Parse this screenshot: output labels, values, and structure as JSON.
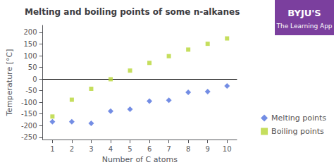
{
  "chart_data": {
    "type": "scatter",
    "title": "Melting and boiling points of some n-alkanes",
    "xlabel": "Number of C atoms",
    "ylabel": "Temperature [°C]",
    "x": [
      1,
      2,
      3,
      4,
      5,
      6,
      7,
      8,
      9,
      10
    ],
    "series": [
      {
        "name": "Melting points",
        "marker": "diamond",
        "values": [
          -183,
          -183,
          -190,
          -138,
          -130,
          -95,
          -91,
          -57,
          -54,
          -30
        ]
      },
      {
        "name": "Boiling points",
        "marker": "square",
        "values": [
          -161,
          -89,
          -42,
          -1,
          36,
          69,
          98,
          126,
          151,
          174
        ]
      }
    ],
    "xlim": [
      0.5,
      10.5
    ],
    "ylim": [
      -260,
      230
    ],
    "xticks": [
      1,
      2,
      3,
      4,
      5,
      6,
      7,
      8,
      9,
      10
    ],
    "yticks": [
      -250,
      -200,
      -150,
      -100,
      -50,
      0,
      50,
      100,
      150,
      200
    ],
    "grid": false,
    "legend": "right",
    "annotations": [
      "BYJU'S",
      "The Learning App"
    ]
  }
}
